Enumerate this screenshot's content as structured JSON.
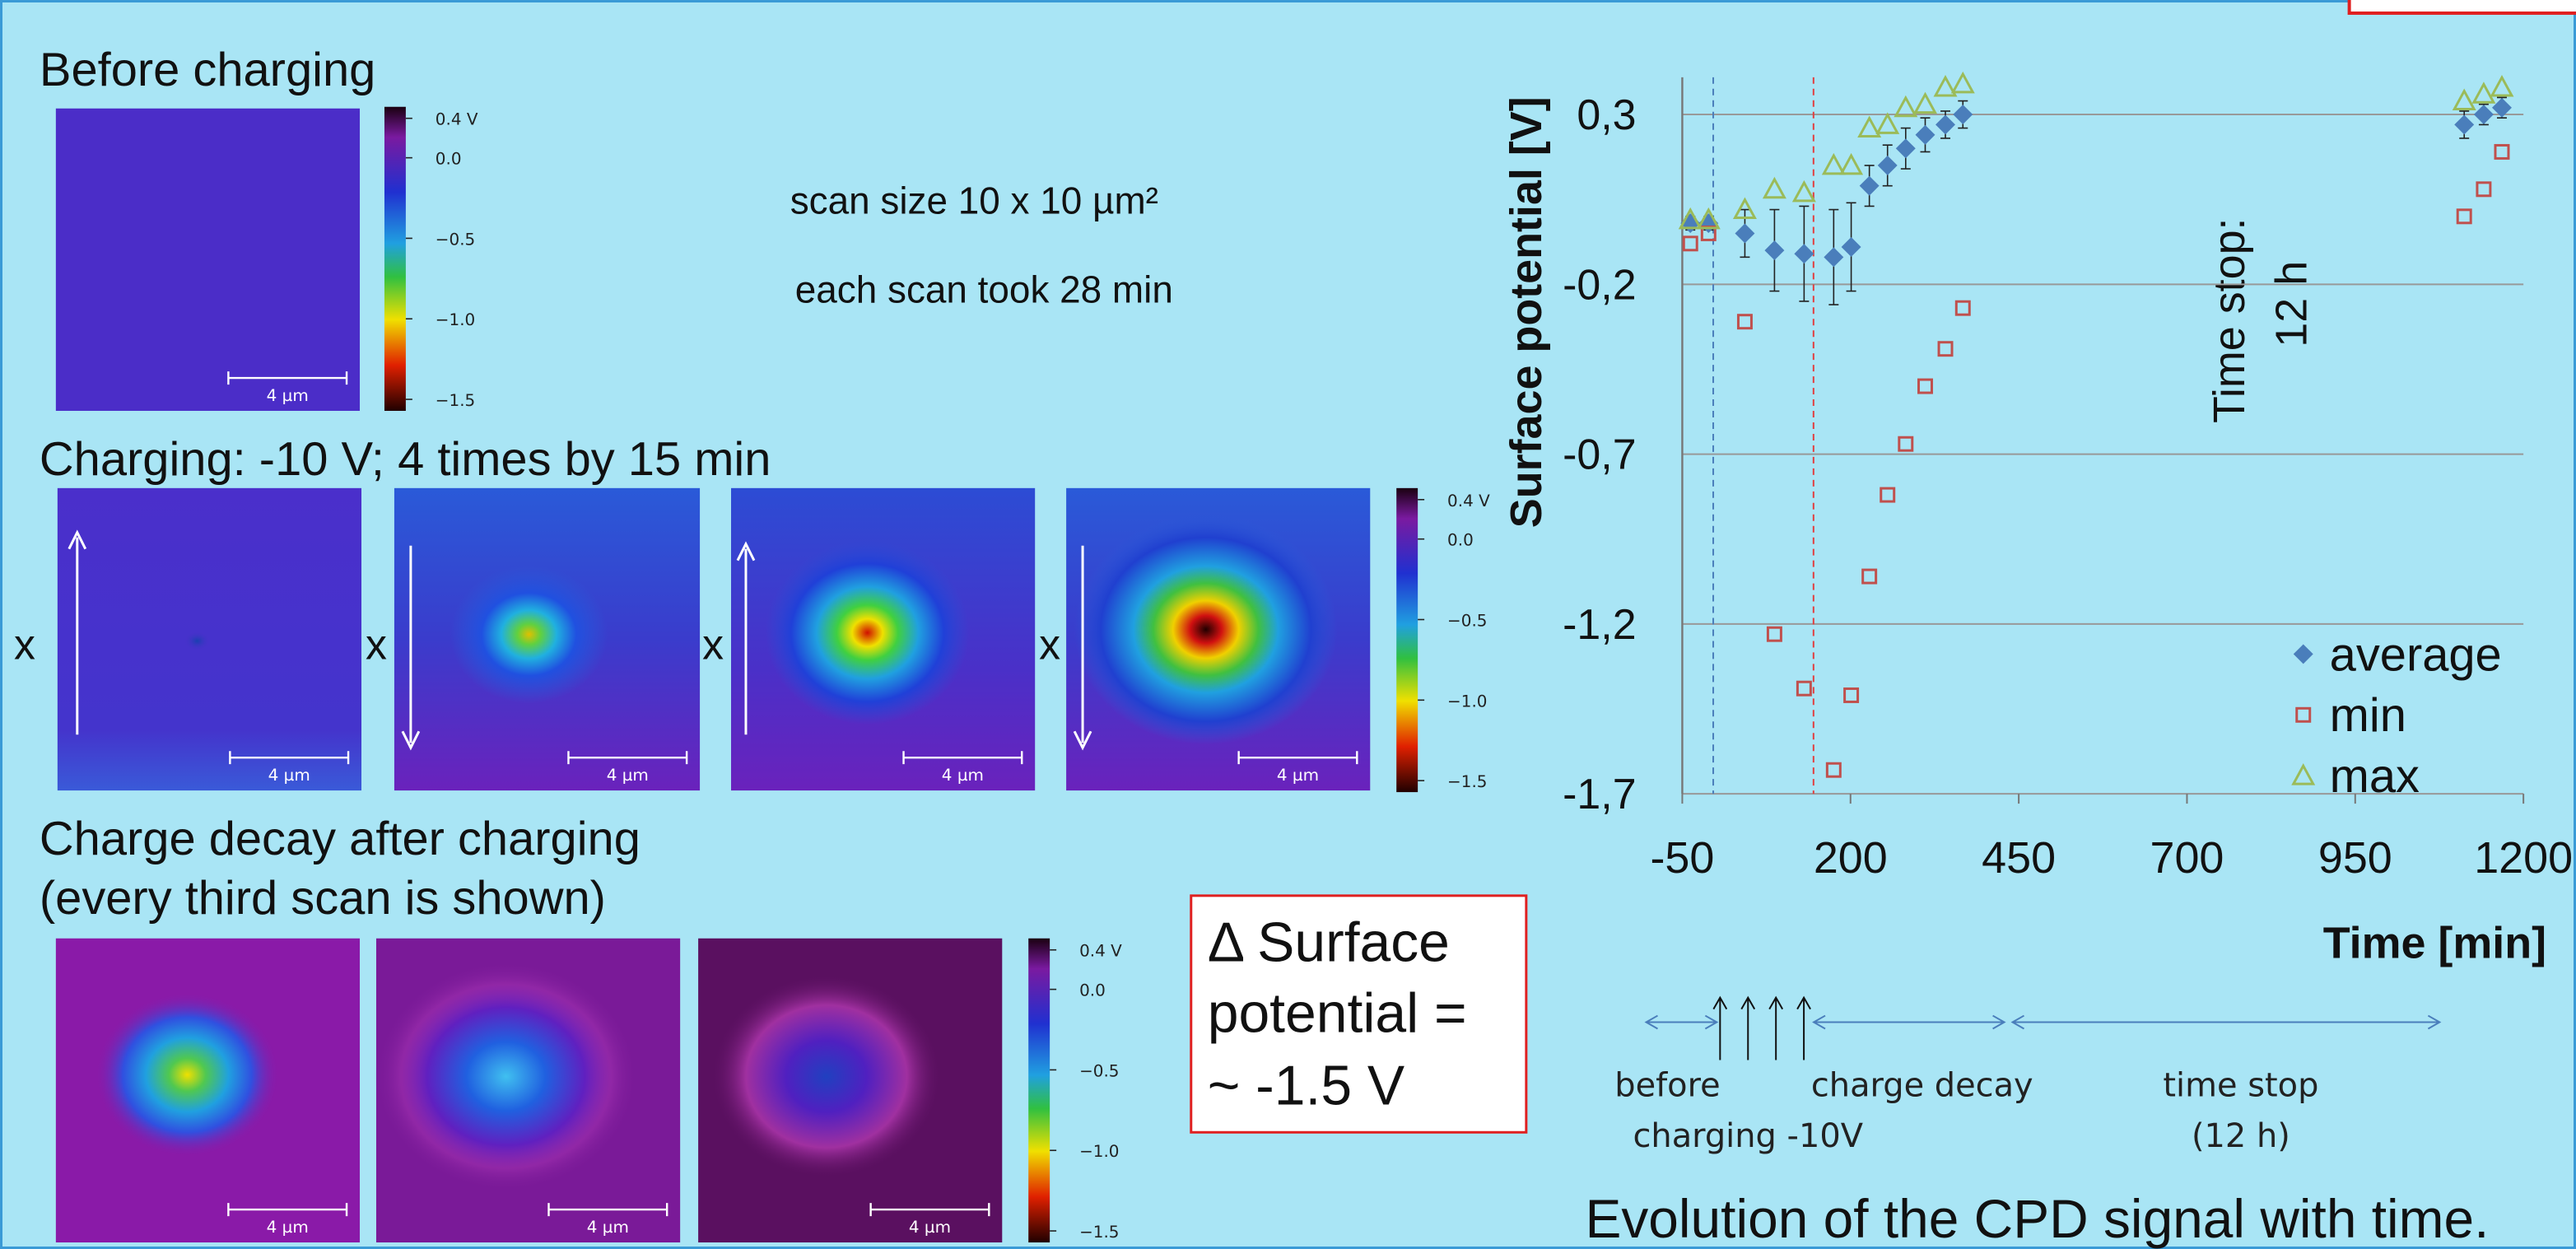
{
  "left": {
    "before_title": "Before charging",
    "scan_size": "scan size 10 x 10 µm²",
    "scan_time": "each scan took 28 min",
    "charging_title": "Charging: -10 V; 4 times by 15 min",
    "position_mark": "x",
    "decay_title": [
      "Charge decay after charging",
      "(every third scan is shown)"
    ],
    "colorbar_labels": [
      "0.4 V",
      "0.0",
      "−0.5",
      "−1.0",
      "−1.5"
    ],
    "scale_bar": "4 µm"
  },
  "delta_box": [
    "Δ Surface",
    "potential =",
    "~ -1.5 V"
  ],
  "timeline": {
    "labels": [
      "before",
      "charging -10V",
      "charge decay",
      "time stop",
      "(12 h)"
    ]
  },
  "caption": "Evolution of the CPD signal with time.",
  "chart_data": {
    "type": "scatter",
    "y_label": "Surface potential  [V]",
    "x_label": "Time [min]",
    "annotations": [
      "Time stop:",
      "12 h"
    ],
    "x": [
      -38,
      -11,
      43,
      87,
      131,
      175,
      201,
      228,
      255,
      282,
      311,
      341,
      367,
      1112,
      1141,
      1168
    ],
    "series": [
      {
        "name": "average",
        "color": "#4a7ebb",
        "marker": "diamond",
        "values": [
          -0.02,
          -0.02,
          -0.05,
          -0.1,
          -0.11,
          -0.12,
          -0.09,
          0.09,
          0.15,
          0.2,
          0.24,
          0.27,
          0.3,
          0.27,
          0.3,
          0.32
        ],
        "errors": [
          0.02,
          0.02,
          0.07,
          0.12,
          0.14,
          0.14,
          0.13,
          0.06,
          0.06,
          0.06,
          0.05,
          0.04,
          0.04,
          0.04,
          0.03,
          0.03
        ]
      },
      {
        "name": "min",
        "color": "#c0504d",
        "marker": "square",
        "values": [
          -0.08,
          -0.05,
          -0.31,
          -1.23,
          -1.39,
          -1.63,
          -1.41,
          -1.06,
          -0.82,
          -0.67,
          -0.5,
          -0.39,
          -0.27,
          0.0,
          0.08,
          0.19
        ]
      },
      {
        "name": "max",
        "color": "#9bbb59",
        "marker": "triangle",
        "values": [
          -0.01,
          -0.01,
          0.02,
          0.08,
          0.07,
          0.15,
          0.15,
          0.26,
          0.27,
          0.32,
          0.33,
          0.38,
          0.39,
          0.34,
          0.36,
          0.38
        ]
      }
    ],
    "reference_lines": [
      {
        "x": -4,
        "color": "#4a7ebb"
      },
      {
        "x": 145,
        "color": "#e04040"
      }
    ],
    "xlim": [
      -50,
      1200
    ],
    "xticks": [
      -50,
      200,
      450,
      700,
      950,
      1200
    ],
    "ylim": [
      -1.7,
      0.4
    ],
    "yticks": [
      {
        "value": 0.3,
        "label": "0,3"
      },
      {
        "value": -0.2,
        "label": "-0,2"
      },
      {
        "value": -0.7,
        "label": "-0,7"
      },
      {
        "value": -1.2,
        "label": "-1,2"
      },
      {
        "value": -1.7,
        "label": "-1,7"
      }
    ],
    "grid": true,
    "legend": "lower right"
  }
}
